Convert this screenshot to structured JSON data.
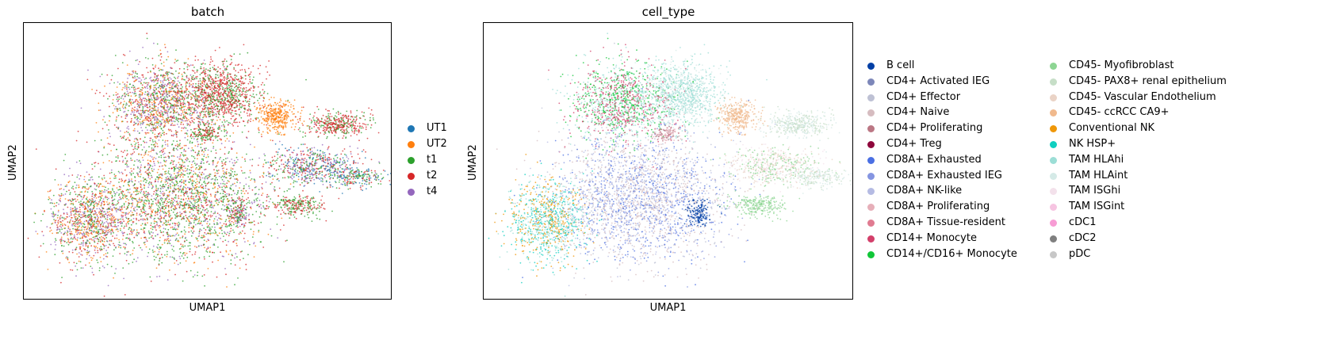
{
  "chart_data": [
    {
      "type": "scatter",
      "title": "batch",
      "xlabel": "UMAP1",
      "ylabel": "UMAP2",
      "grid": false,
      "legend_position": "right",
      "series": [
        {
          "name": "UT1",
          "color": "#1f77b4"
        },
        {
          "name": "UT2",
          "color": "#ff7f0e"
        },
        {
          "name": "t1",
          "color": "#2ca02c"
        },
        {
          "name": "t2",
          "color": "#d62728"
        },
        {
          "name": "t4",
          "color": "#9467bd"
        }
      ]
    },
    {
      "type": "scatter",
      "title": "cell_type",
      "xlabel": "UMAP1",
      "ylabel": "UMAP2",
      "grid": false,
      "legend_position": "right",
      "series": [
        {
          "name": "B cell",
          "color": "#023fa5"
        },
        {
          "name": "CD4+ Activated IEG",
          "color": "#7d87b9"
        },
        {
          "name": "CD4+ Effector",
          "color": "#bec1d4"
        },
        {
          "name": "CD4+ Naive",
          "color": "#d6bcc0"
        },
        {
          "name": "CD4+ Proliferating",
          "color": "#bb7784"
        },
        {
          "name": "CD4+ Treg",
          "color": "#8e063b"
        },
        {
          "name": "CD8A+ Exhausted",
          "color": "#4a6fe3"
        },
        {
          "name": "CD8A+ Exhausted IEG",
          "color": "#8595e1"
        },
        {
          "name": "CD8A+ NK-like",
          "color": "#b5bbe3"
        },
        {
          "name": "CD8A+ Proliferating",
          "color": "#e6afb9"
        },
        {
          "name": "CD8A+ Tissue-resident",
          "color": "#e07b91"
        },
        {
          "name": "CD14+ Monocyte",
          "color": "#d33f6a"
        },
        {
          "name": "CD14+/CD16+ Monocyte",
          "color": "#11c638"
        },
        {
          "name": "CD45- Myofibroblast",
          "color": "#8dd593"
        },
        {
          "name": "CD45- PAX8+ renal epithelium",
          "color": "#c6dec7"
        },
        {
          "name": "CD45- Vascular Endothelium",
          "color": "#ead3c6"
        },
        {
          "name": "CD45- ccRCC CA9+",
          "color": "#f0b98d"
        },
        {
          "name": "Conventional NK",
          "color": "#ef9708"
        },
        {
          "name": "NK HSP+",
          "color": "#0fcfc0"
        },
        {
          "name": "TAM HLAhi",
          "color": "#9cded6"
        },
        {
          "name": "TAM HLAint",
          "color": "#d5eae7"
        },
        {
          "name": "TAM ISGhi",
          "color": "#f3e1eb"
        },
        {
          "name": "TAM ISGint",
          "color": "#f6c4e1"
        },
        {
          "name": "cDC1",
          "color": "#f79cd4"
        },
        {
          "name": "cDC2",
          "color": "#7f7f7f"
        },
        {
          "name": "pDC",
          "color": "#c7c7c7"
        }
      ]
    }
  ]
}
